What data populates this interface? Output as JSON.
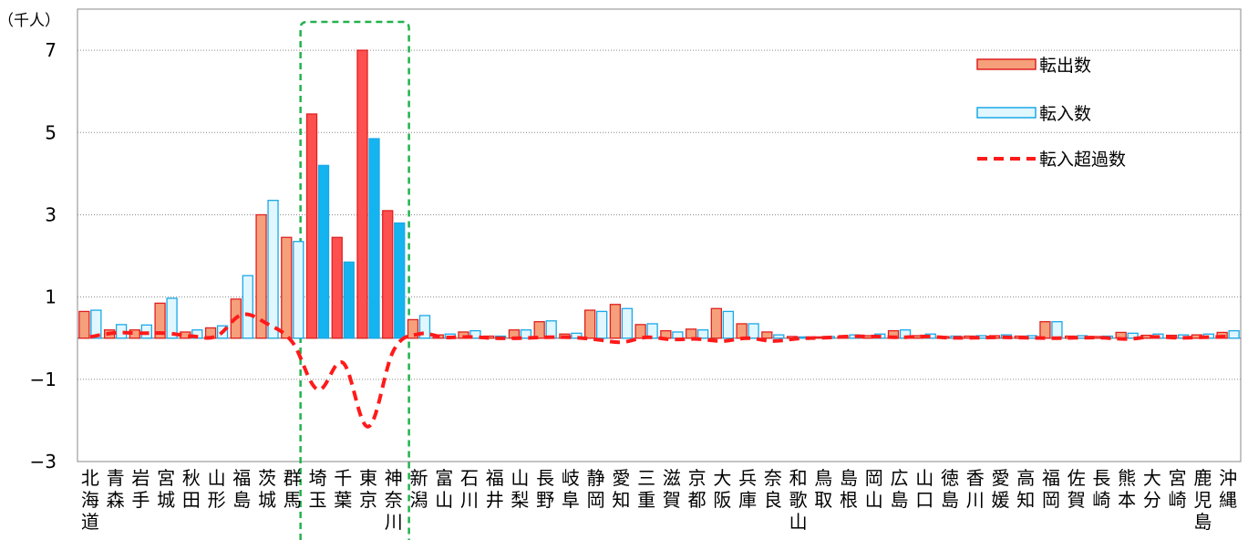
{
  "chart_data": {
    "type": "bar",
    "unit_label": "（千人）",
    "ylim": [
      -3,
      8
    ],
    "yticks": [
      "7",
      "5",
      "3",
      "1",
      "−1",
      "−3"
    ],
    "ytick_values": [
      7,
      5,
      3,
      1,
      -1,
      -3
    ],
    "grid": true,
    "legend_position": "top-right",
    "categories": [
      "北海道",
      "青森",
      "岩手",
      "宮城",
      "秋田",
      "山形",
      "福島",
      "茨城",
      "群馬",
      "埼玉",
      "千葉",
      "東京",
      "神奈川",
      "新潟",
      "富山",
      "石川",
      "福井",
      "山梨",
      "長野",
      "岐阜",
      "静岡",
      "愛知",
      "三重",
      "滋賀",
      "京都",
      "大阪",
      "兵庫",
      "奈良",
      "和歌山",
      "鳥取",
      "島根",
      "岡山",
      "広島",
      "山口",
      "徳島",
      "香川",
      "愛媛",
      "高知",
      "福岡",
      "佐賀",
      "長崎",
      "熊本",
      "大分",
      "宮崎",
      "鹿児島",
      "沖縄"
    ],
    "highlight_range": [
      "埼玉",
      "神奈川"
    ],
    "series": [
      {
        "name": "転出数",
        "kind": "bar",
        "color": "#f5a07a",
        "highlight_color": "#ff5050",
        "edge_color": "#e02020",
        "values": [
          0.65,
          0.2,
          0.2,
          0.85,
          0.15,
          0.25,
          0.95,
          3.0,
          2.45,
          5.45,
          2.45,
          7.0,
          3.1,
          0.45,
          0.08,
          0.15,
          0.05,
          0.2,
          0.4,
          0.1,
          0.68,
          0.82,
          0.33,
          0.18,
          0.22,
          0.72,
          0.35,
          0.15,
          0.04,
          0.03,
          0.04,
          0.06,
          0.18,
          0.06,
          0.04,
          0.05,
          0.06,
          0.05,
          0.4,
          0.05,
          0.04,
          0.14,
          0.07,
          0.07,
          0.08,
          0.14
        ]
      },
      {
        "name": "転入数",
        "kind": "bar",
        "color": "#e0f7ff",
        "highlight_color": "#14b4f0",
        "edge_color": "#1aa8e8",
        "values": [
          0.68,
          0.33,
          0.32,
          0.97,
          0.2,
          0.3,
          1.52,
          3.35,
          2.35,
          4.2,
          1.85,
          4.85,
          2.8,
          0.55,
          0.1,
          0.18,
          0.05,
          0.2,
          0.42,
          0.12,
          0.65,
          0.72,
          0.35,
          0.15,
          0.2,
          0.65,
          0.35,
          0.08,
          0.03,
          0.04,
          0.08,
          0.1,
          0.2,
          0.1,
          0.05,
          0.06,
          0.08,
          0.06,
          0.4,
          0.06,
          0.05,
          0.12,
          0.1,
          0.08,
          0.1,
          0.18
        ]
      },
      {
        "name": "転入超過数",
        "kind": "line",
        "color": "#ff1a1a",
        "values": [
          0.03,
          0.13,
          0.12,
          0.12,
          0.05,
          0.05,
          0.57,
          0.35,
          -0.1,
          -1.25,
          -0.6,
          -2.15,
          -0.3,
          0.1,
          0.02,
          0.03,
          0.0,
          0.0,
          0.02,
          0.02,
          -0.03,
          -0.1,
          0.02,
          -0.03,
          -0.02,
          -0.07,
          0.0,
          -0.07,
          -0.01,
          0.01,
          0.04,
          0.04,
          0.02,
          0.04,
          0.01,
          0.01,
          0.02,
          0.01,
          0.0,
          0.01,
          0.01,
          -0.02,
          0.03,
          0.01,
          0.02,
          0.04
        ]
      }
    ]
  }
}
